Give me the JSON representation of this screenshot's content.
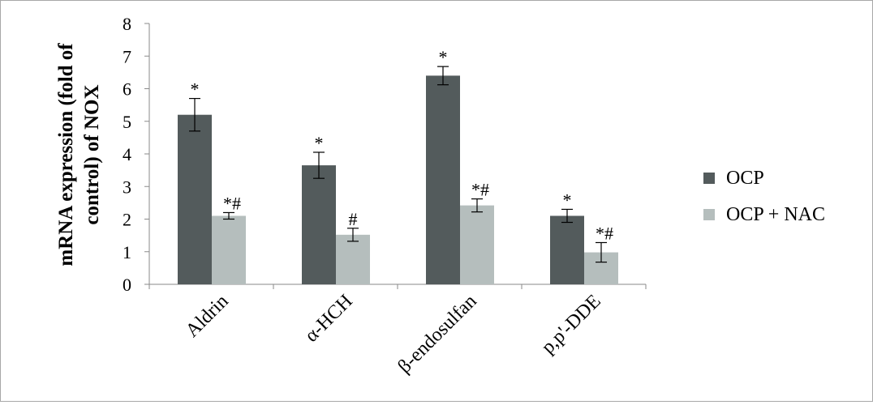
{
  "chart_data": {
    "type": "bar",
    "title": "",
    "xlabel": "",
    "ylabel": "mRNA expression (fold of control) of NOX",
    "ylabel_lines": [
      "mRNA expression (fold of",
      "control) of NOX"
    ],
    "ylim": [
      0,
      8
    ],
    "yticks": [
      "0",
      "1",
      "2",
      "3",
      "4",
      "5",
      "6",
      "7",
      "8"
    ],
    "ytick_values": [
      0,
      1,
      2,
      3,
      4,
      5,
      6,
      7,
      8
    ],
    "grid": false,
    "legend_position": "right",
    "categories": [
      "Aldrin",
      "α-HCH",
      "β-endosulfan",
      "p,p'-DDE"
    ],
    "series": [
      {
        "name": "OCP",
        "color": "#535b5c",
        "values": [
          5.2,
          3.65,
          6.4,
          2.1
        ],
        "errors": [
          0.5,
          0.4,
          0.28,
          0.2
        ],
        "annotations": [
          "*",
          "*",
          "*",
          "*"
        ]
      },
      {
        "name": "OCP + NAC",
        "color": "#b5bebd",
        "values": [
          2.1,
          1.52,
          2.42,
          0.98
        ],
        "errors": [
          0.1,
          0.2,
          0.2,
          0.3
        ],
        "annotations": [
          "*#",
          "#",
          "*#",
          "*#"
        ]
      }
    ]
  }
}
